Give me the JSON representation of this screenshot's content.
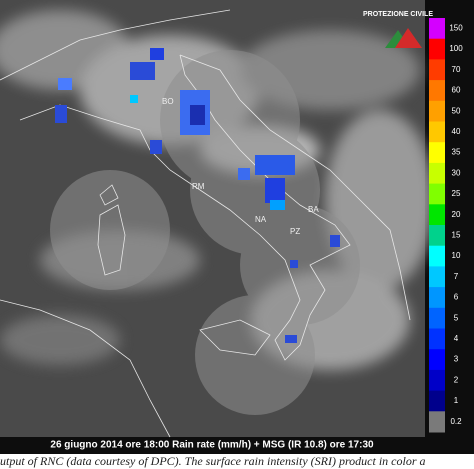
{
  "map": {
    "logo": "PROTEZIONE CIVILE",
    "cities": [
      "BO",
      "RM",
      "NA",
      "BA",
      "PZ"
    ],
    "caption": "26 giugno 2014 ore 18:00 Rain rate (mm/h) + MSG (IR 10.8) ore 17:30"
  },
  "legend": {
    "labels": [
      "150",
      "100",
      "70",
      "60",
      "50",
      "40",
      "35",
      "30",
      "25",
      "20",
      "15",
      "10",
      "7",
      "6",
      "5",
      "4",
      "3",
      "2",
      "1",
      "0.2"
    ],
    "colors": [
      "#d400ff",
      "#ff0000",
      "#ff3c00",
      "#ff7800",
      "#ffa000",
      "#ffc800",
      "#ffff00",
      "#c8ff00",
      "#80ff00",
      "#00e600",
      "#00d28c",
      "#00ffff",
      "#00c8ff",
      "#0096ff",
      "#0064ff",
      "#0032ff",
      "#0000ff",
      "#0000c8",
      "#00008c",
      "#7a7a7a"
    ]
  },
  "figure_caption": "utput of RNC (data courtesy of DPC). The surface rain intensity (SRI) product in color a"
}
